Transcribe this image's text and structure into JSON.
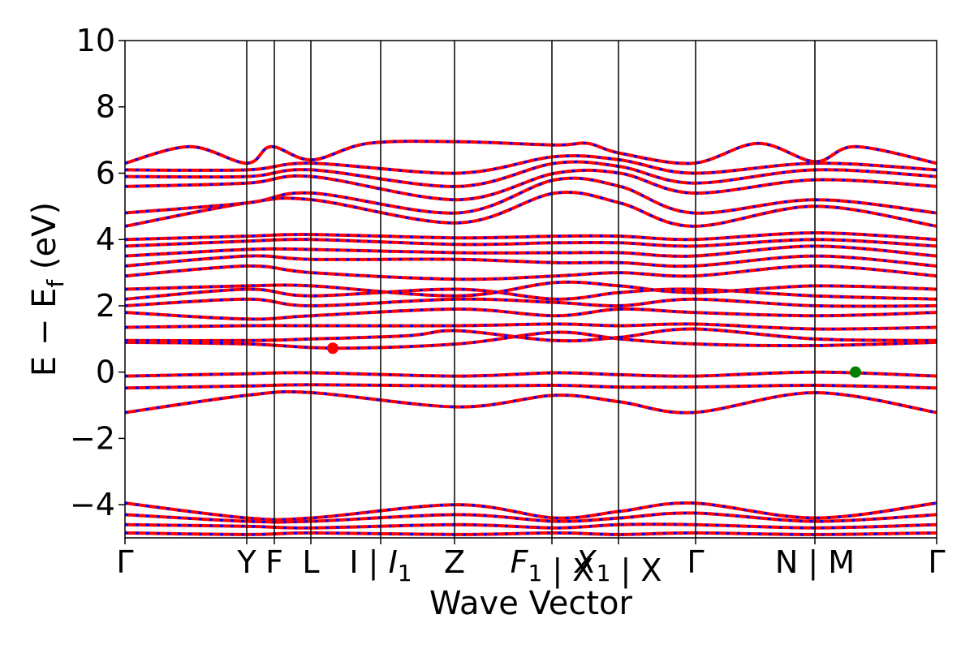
{
  "chart_data": {
    "type": "line",
    "title": "",
    "xlabel": "Wave Vector",
    "ylabel": "E − E_f (eV)",
    "ylabel_main": "E − E",
    "ylabel_sub": "f",
    "ylabel_unit": " (eV)",
    "ylim": [
      -5,
      10
    ],
    "yticks": [
      -4,
      -2,
      0,
      2,
      4,
      6,
      8,
      10
    ],
    "ytick_labels": [
      "−4",
      "−2",
      "0",
      "2",
      "4",
      "6",
      "8",
      "10"
    ],
    "xlim": [
      0,
      1
    ],
    "grid": false,
    "legend": "none",
    "kpoints": [
      {
        "pos": 0.0,
        "label": "Γ",
        "sub": "",
        "italic": false
      },
      {
        "pos": 0.15,
        "label": "Y",
        "sub": "",
        "italic": false
      },
      {
        "pos": 0.184,
        "label": "F",
        "sub": "",
        "italic": false
      },
      {
        "pos": 0.229,
        "label": "L",
        "sub": "",
        "italic": false
      },
      {
        "pos": 0.315,
        "label": "I | ",
        "sub": "",
        "italic": false
      },
      {
        "pos": 0.315,
        "label": "I",
        "sub": "1",
        "italic": true
      },
      {
        "pos": 0.406,
        "label": "Z",
        "sub": "",
        "italic": false
      },
      {
        "pos": 0.526,
        "label": "F",
        "sub": "1",
        "italic": true
      },
      {
        "pos": 0.526,
        "label": " | X",
        "sub": "",
        "italic": false
      },
      {
        "pos": 0.608,
        "label": "X",
        "sub": "1",
        "italic": true
      },
      {
        "pos": 0.608,
        "label": " | X",
        "sub": "",
        "italic": false
      },
      {
        "pos": 0.703,
        "label": "Γ",
        "sub": "",
        "italic": false
      },
      {
        "pos": 0.85,
        "label": "N | M",
        "sub": "",
        "italic": false
      },
      {
        "pos": 1.0,
        "label": "Γ",
        "sub": "",
        "italic": false
      }
    ],
    "series": [
      {
        "color": "#ff0000",
        "style": "solid"
      },
      {
        "color": "#0000ff",
        "style": "dashed"
      }
    ],
    "bands": [
      [
        [
          0,
          -1.22
        ],
        [
          0.15,
          -0.7
        ],
        [
          0.23,
          -0.62
        ],
        [
          0.41,
          -1.05
        ],
        [
          0.53,
          -0.7
        ],
        [
          0.61,
          -0.9
        ],
        [
          0.7,
          -1.22
        ],
        [
          0.85,
          -0.62
        ],
        [
          1,
          -1.22
        ]
      ],
      [
        [
          0,
          -0.48
        ],
        [
          0.15,
          -0.42
        ],
        [
          0.23,
          -0.38
        ],
        [
          0.41,
          -0.42
        ],
        [
          0.53,
          -0.4
        ],
        [
          0.61,
          -0.45
        ],
        [
          0.7,
          -0.45
        ],
        [
          0.85,
          -0.4
        ],
        [
          1,
          -0.48
        ]
      ],
      [
        [
          0,
          -0.12
        ],
        [
          0.15,
          -0.05
        ],
        [
          0.23,
          -0.02
        ],
        [
          0.41,
          -0.12
        ],
        [
          0.53,
          -0.02
        ],
        [
          0.61,
          -0.08
        ],
        [
          0.7,
          -0.12
        ],
        [
          0.85,
          0.0
        ],
        [
          1,
          -0.12
        ]
      ],
      [
        [
          0,
          0.9
        ],
        [
          0.15,
          0.85
        ],
        [
          0.26,
          0.72
        ],
        [
          0.41,
          0.85
        ],
        [
          0.53,
          1.2
        ],
        [
          0.61,
          1.0
        ],
        [
          0.7,
          0.85
        ],
        [
          0.85,
          0.8
        ],
        [
          1,
          0.9
        ]
      ],
      [
        [
          0,
          0.95
        ],
        [
          0.15,
          0.95
        ],
        [
          0.23,
          1.0
        ],
        [
          0.35,
          1.1
        ],
        [
          0.41,
          1.25
        ],
        [
          0.53,
          0.95
        ],
        [
          0.61,
          1.05
        ],
        [
          0.7,
          1.3
        ],
        [
          0.85,
          1.0
        ],
        [
          1,
          0.95
        ]
      ],
      [
        [
          0,
          1.35
        ],
        [
          0.15,
          1.4
        ],
        [
          0.23,
          1.4
        ],
        [
          0.41,
          1.4
        ],
        [
          0.53,
          1.45
        ],
        [
          0.61,
          1.4
        ],
        [
          0.7,
          1.45
        ],
        [
          0.85,
          1.3
        ],
        [
          1,
          1.35
        ]
      ],
      [
        [
          0,
          1.8
        ],
        [
          0.15,
          1.6
        ],
        [
          0.23,
          1.7
        ],
        [
          0.41,
          1.9
        ],
        [
          0.53,
          1.7
        ],
        [
          0.61,
          1.9
        ],
        [
          0.7,
          1.8
        ],
        [
          0.85,
          1.7
        ],
        [
          1,
          1.8
        ]
      ],
      [
        [
          0,
          2.0
        ],
        [
          0.15,
          2.2
        ],
        [
          0.23,
          2.0
        ],
        [
          0.41,
          2.2
        ],
        [
          0.53,
          2.1
        ],
        [
          0.61,
          2.0
        ],
        [
          0.7,
          2.2
        ],
        [
          0.85,
          2.0
        ],
        [
          1,
          2.0
        ]
      ],
      [
        [
          0,
          2.2
        ],
        [
          0.15,
          2.5
        ],
        [
          0.23,
          2.3
        ],
        [
          0.41,
          2.5
        ],
        [
          0.53,
          2.2
        ],
        [
          0.61,
          2.4
        ],
        [
          0.7,
          2.5
        ],
        [
          0.85,
          2.3
        ],
        [
          1,
          2.2
        ]
      ],
      [
        [
          0,
          2.5
        ],
        [
          0.15,
          2.6
        ],
        [
          0.23,
          2.6
        ],
        [
          0.41,
          2.3
        ],
        [
          0.53,
          2.7
        ],
        [
          0.61,
          2.6
        ],
        [
          0.7,
          2.4
        ],
        [
          0.85,
          2.6
        ],
        [
          1,
          2.5
        ]
      ],
      [
        [
          0,
          2.9
        ],
        [
          0.15,
          3.2
        ],
        [
          0.23,
          3.0
        ],
        [
          0.41,
          2.8
        ],
        [
          0.53,
          2.9
        ],
        [
          0.61,
          3.0
        ],
        [
          0.7,
          2.9
        ],
        [
          0.85,
          3.2
        ],
        [
          1,
          2.9
        ]
      ],
      [
        [
          0,
          3.2
        ],
        [
          0.15,
          3.5
        ],
        [
          0.23,
          3.4
        ],
        [
          0.41,
          3.4
        ],
        [
          0.53,
          3.3
        ],
        [
          0.61,
          3.3
        ],
        [
          0.7,
          3.2
        ],
        [
          0.85,
          3.5
        ],
        [
          1,
          3.2
        ]
      ],
      [
        [
          0,
          3.5
        ],
        [
          0.15,
          3.7
        ],
        [
          0.23,
          3.7
        ],
        [
          0.41,
          3.6
        ],
        [
          0.53,
          3.6
        ],
        [
          0.61,
          3.6
        ],
        [
          0.7,
          3.5
        ],
        [
          0.85,
          3.8
        ],
        [
          1,
          3.5
        ]
      ],
      [
        [
          0,
          3.8
        ],
        [
          0.15,
          3.95
        ],
        [
          0.23,
          4.0
        ],
        [
          0.41,
          3.85
        ],
        [
          0.53,
          3.9
        ],
        [
          0.61,
          3.9
        ],
        [
          0.7,
          3.8
        ],
        [
          0.85,
          4.0
        ],
        [
          1,
          3.8
        ]
      ],
      [
        [
          0,
          4.0
        ],
        [
          0.15,
          4.1
        ],
        [
          0.23,
          4.15
        ],
        [
          0.41,
          4.05
        ],
        [
          0.53,
          4.1
        ],
        [
          0.61,
          4.1
        ],
        [
          0.7,
          4.0
        ],
        [
          0.85,
          4.2
        ],
        [
          1,
          4.0
        ]
      ],
      [
        [
          0,
          4.4
        ],
        [
          0.15,
          5.1
        ],
        [
          0.23,
          5.2
        ],
        [
          0.41,
          4.5
        ],
        [
          0.53,
          5.4
        ],
        [
          0.61,
          5.1
        ],
        [
          0.7,
          4.4
        ],
        [
          0.85,
          5.0
        ],
        [
          1,
          4.4
        ]
      ],
      [
        [
          0,
          4.8
        ],
        [
          0.15,
          5.1
        ],
        [
          0.23,
          5.4
        ],
        [
          0.41,
          4.8
        ],
        [
          0.53,
          5.8
        ],
        [
          0.61,
          5.6
        ],
        [
          0.7,
          4.8
        ],
        [
          0.85,
          5.2
        ],
        [
          1,
          4.8
        ]
      ],
      [
        [
          0,
          5.6
        ],
        [
          0.15,
          5.7
        ],
        [
          0.23,
          5.9
        ],
        [
          0.41,
          5.2
        ],
        [
          0.53,
          6.0
        ],
        [
          0.61,
          6.0
        ],
        [
          0.7,
          5.4
        ],
        [
          0.85,
          5.8
        ],
        [
          1,
          5.6
        ]
      ],
      [
        [
          0,
          5.9
        ],
        [
          0.15,
          5.9
        ],
        [
          0.23,
          6.1
        ],
        [
          0.41,
          5.6
        ],
        [
          0.53,
          6.3
        ],
        [
          0.61,
          6.2
        ],
        [
          0.7,
          5.7
        ],
        [
          0.85,
          6.1
        ],
        [
          1,
          5.9
        ]
      ],
      [
        [
          0,
          6.1
        ],
        [
          0.15,
          6.1
        ],
        [
          0.23,
          6.3
        ],
        [
          0.41,
          6.0
        ],
        [
          0.53,
          6.5
        ],
        [
          0.61,
          6.4
        ],
        [
          0.7,
          6.0
        ],
        [
          0.85,
          6.3
        ],
        [
          1,
          6.1
        ]
      ],
      [
        [
          0,
          6.3
        ],
        [
          0.08,
          6.8
        ],
        [
          0.15,
          6.3
        ],
        [
          0.18,
          6.8
        ],
        [
          0.23,
          6.4
        ],
        [
          0.3,
          6.9
        ],
        [
          0.41,
          6.95
        ],
        [
          0.53,
          6.85
        ],
        [
          0.57,
          6.9
        ],
        [
          0.61,
          6.6
        ],
        [
          0.7,
          6.3
        ],
        [
          0.78,
          6.9
        ],
        [
          0.85,
          6.35
        ],
        [
          0.9,
          6.8
        ],
        [
          1,
          6.3
        ]
      ],
      [
        [
          0,
          -3.95
        ],
        [
          0.15,
          -4.4
        ],
        [
          0.23,
          -4.4
        ],
        [
          0.41,
          -4.0
        ],
        [
          0.53,
          -4.4
        ],
        [
          0.61,
          -4.2
        ],
        [
          0.7,
          -3.95
        ],
        [
          0.85,
          -4.4
        ],
        [
          1,
          -3.95
        ]
      ],
      [
        [
          0,
          -4.3
        ],
        [
          0.15,
          -4.5
        ],
        [
          0.23,
          -4.5
        ],
        [
          0.41,
          -4.3
        ],
        [
          0.53,
          -4.5
        ],
        [
          0.61,
          -4.4
        ],
        [
          0.7,
          -4.25
        ],
        [
          0.85,
          -4.5
        ],
        [
          1,
          -4.3
        ]
      ],
      [
        [
          0,
          -4.6
        ],
        [
          0.15,
          -4.65
        ],
        [
          0.23,
          -4.7
        ],
        [
          0.41,
          -4.6
        ],
        [
          0.53,
          -4.7
        ],
        [
          0.61,
          -4.6
        ],
        [
          0.7,
          -4.6
        ],
        [
          0.85,
          -4.7
        ],
        [
          1,
          -4.6
        ]
      ],
      [
        [
          0,
          -4.85
        ],
        [
          0.15,
          -4.9
        ],
        [
          0.23,
          -4.85
        ],
        [
          0.41,
          -4.9
        ],
        [
          0.53,
          -4.85
        ],
        [
          0.61,
          -4.9
        ],
        [
          0.7,
          -4.85
        ],
        [
          0.85,
          -4.9
        ],
        [
          1,
          -4.85
        ]
      ]
    ],
    "markers": [
      {
        "name": "cbm-marker",
        "x": 0.256,
        "y": 0.72,
        "color": "#ff0000"
      },
      {
        "name": "vbm-marker",
        "x": 0.9,
        "y": 0.0,
        "color": "#008000"
      }
    ]
  }
}
